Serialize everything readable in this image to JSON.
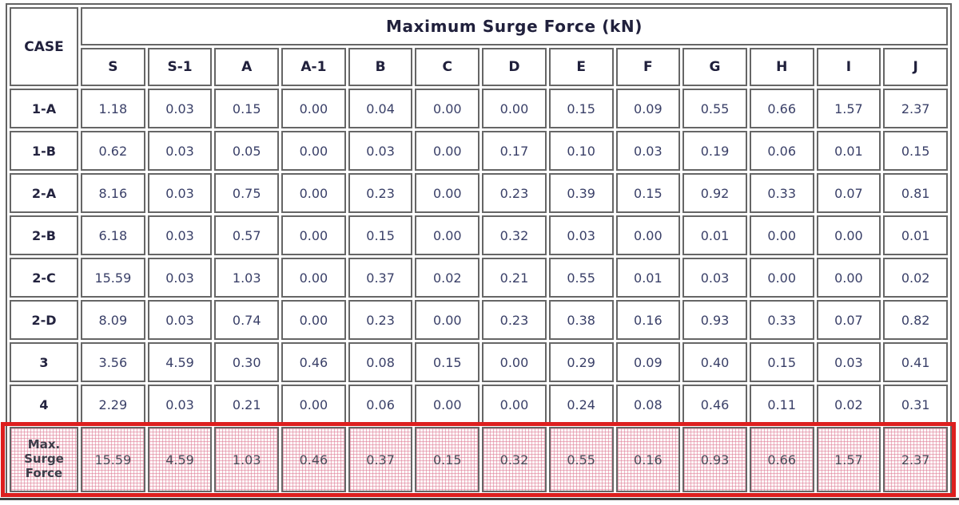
{
  "chart_data": {
    "type": "table",
    "title": "Maximum Surge Force (kN)",
    "corner_label": "CASE",
    "columns": [
      "S",
      "S-1",
      "A",
      "A-1",
      "B",
      "C",
      "D",
      "E",
      "F",
      "G",
      "H",
      "I",
      "J"
    ],
    "rows": [
      {
        "label": "1-A",
        "values": [
          "1.18",
          "0.03",
          "0.15",
          "0.00",
          "0.04",
          "0.00",
          "0.00",
          "0.15",
          "0.09",
          "0.55",
          "0.66",
          "1.57",
          "2.37"
        ]
      },
      {
        "label": "1-B",
        "values": [
          "0.62",
          "0.03",
          "0.05",
          "0.00",
          "0.03",
          "0.00",
          "0.17",
          "0.10",
          "0.03",
          "0.19",
          "0.06",
          "0.01",
          "0.15"
        ]
      },
      {
        "label": "2-A",
        "values": [
          "8.16",
          "0.03",
          "0.75",
          "0.00",
          "0.23",
          "0.00",
          "0.23",
          "0.39",
          "0.15",
          "0.92",
          "0.33",
          "0.07",
          "0.81"
        ]
      },
      {
        "label": "2-B",
        "values": [
          "6.18",
          "0.03",
          "0.57",
          "0.00",
          "0.15",
          "0.00",
          "0.32",
          "0.03",
          "0.00",
          "0.01",
          "0.00",
          "0.00",
          "0.01"
        ]
      },
      {
        "label": "2-C",
        "values": [
          "15.59",
          "0.03",
          "1.03",
          "0.00",
          "0.37",
          "0.02",
          "0.21",
          "0.55",
          "0.01",
          "0.03",
          "0.00",
          "0.00",
          "0.02"
        ]
      },
      {
        "label": "2-D",
        "values": [
          "8.09",
          "0.03",
          "0.74",
          "0.00",
          "0.23",
          "0.00",
          "0.23",
          "0.38",
          "0.16",
          "0.93",
          "0.33",
          "0.07",
          "0.82"
        ]
      },
      {
        "label": "3",
        "values": [
          "3.56",
          "4.59",
          "0.30",
          "0.46",
          "0.08",
          "0.15",
          "0.00",
          "0.29",
          "0.09",
          "0.40",
          "0.15",
          "0.03",
          "0.41"
        ]
      },
      {
        "label": "4",
        "values": [
          "2.29",
          "0.03",
          "0.21",
          "0.00",
          "0.06",
          "0.00",
          "0.00",
          "0.24",
          "0.08",
          "0.46",
          "0.11",
          "0.02",
          "0.31"
        ]
      }
    ],
    "summary_row": {
      "label": "Max. Surge Force",
      "values": [
        "15.59",
        "4.59",
        "1.03",
        "0.46",
        "0.37",
        "0.15",
        "0.32",
        "0.55",
        "0.16",
        "0.93",
        "0.66",
        "1.57",
        "2.37"
      ]
    },
    "annotation": {
      "highlighted_row": "Max. Surge Force",
      "highlight_border_color": "#dd1f1f",
      "highlight_fill_pattern_color": "#de7a94"
    },
    "layout": {
      "grid": "on",
      "legend": "none"
    }
  },
  "colors": {
    "cell_border": "#666666",
    "header_text": "#20203c",
    "value_text": "#3a4068",
    "summary_text": "#4a4a58",
    "highlight_border": "#dd1f1f",
    "pink_grid": "#de7a94",
    "bottom_rule": "#3e3e3e"
  }
}
